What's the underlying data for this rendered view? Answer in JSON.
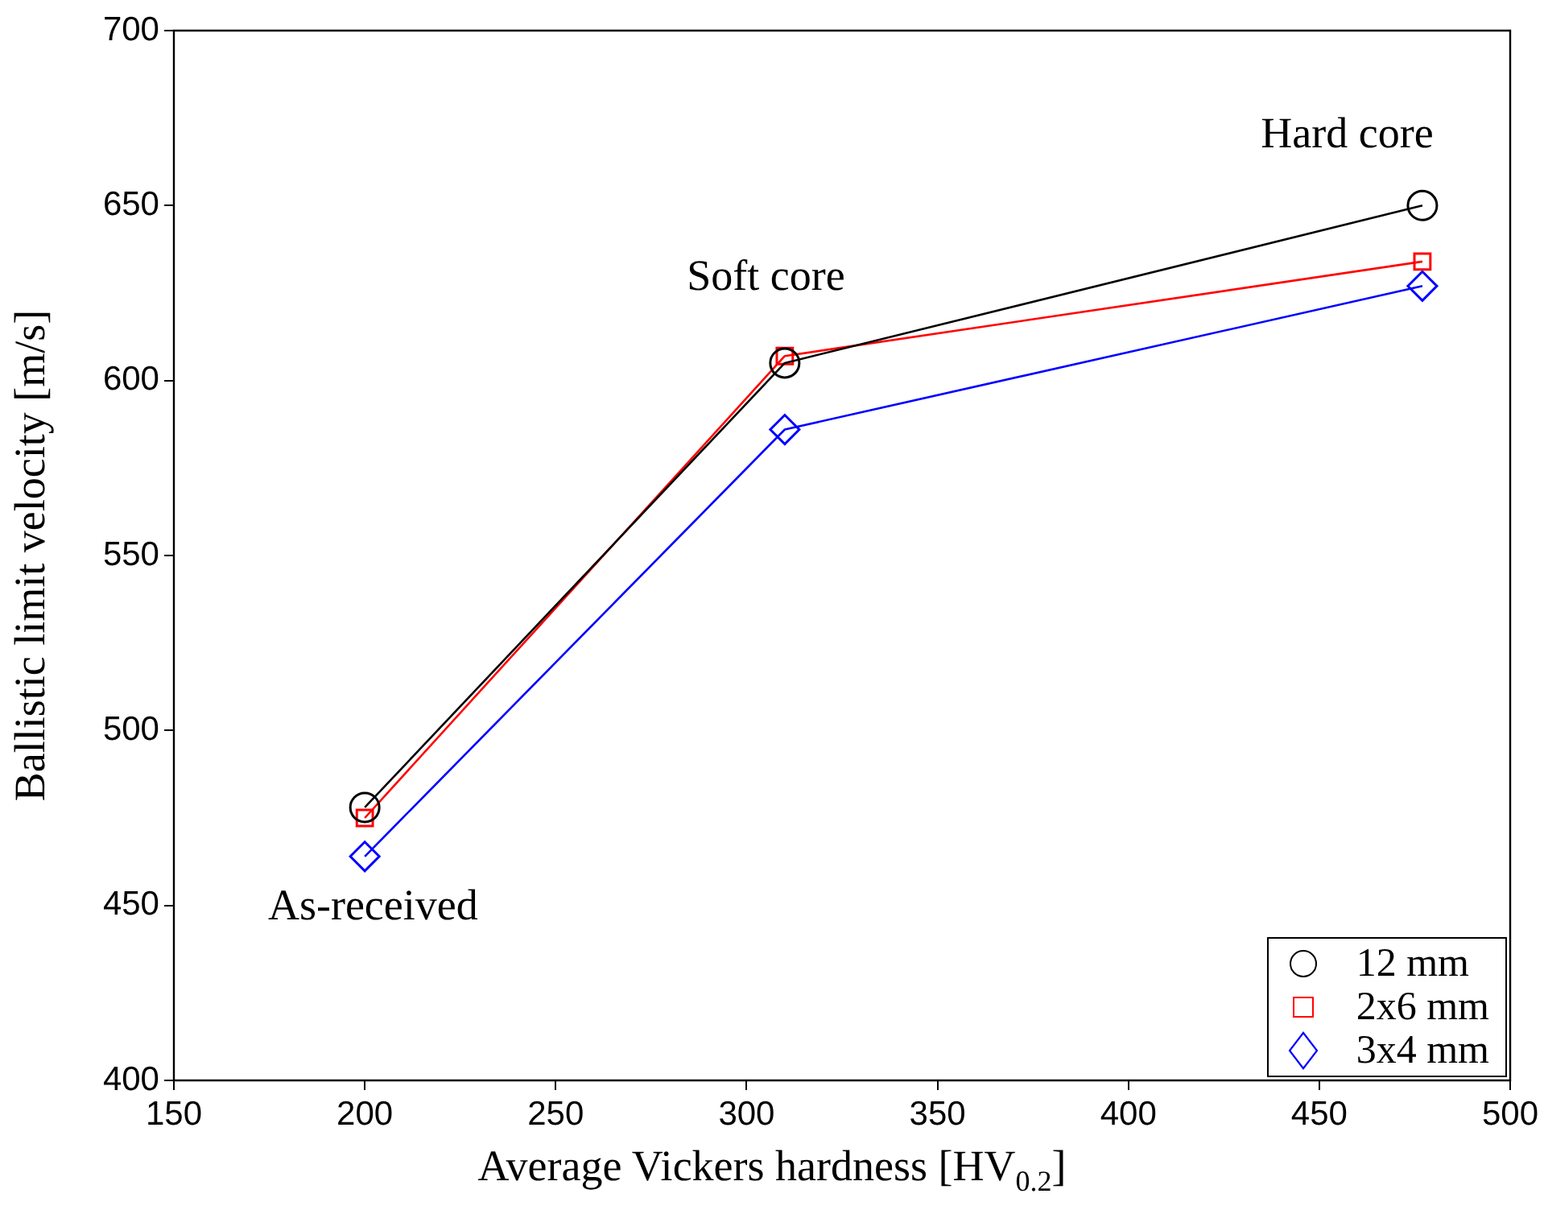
{
  "chart_data": {
    "type": "line",
    "xlabel": "Average Vickers hardness [HV$_{0.2}$]",
    "ylabel": "Ballistic limit velocity [m/s]",
    "x": [
      200,
      310,
      477
    ],
    "series": [
      {
        "name": "12 mm",
        "color": "#000000",
        "marker": "circle",
        "values": [
          478,
          605,
          650
        ]
      },
      {
        "name": "2x6 mm",
        "color": "#ff0000",
        "marker": "square",
        "values": [
          475,
          607,
          634
        ]
      },
      {
        "name": "3x4 mm",
        "color": "#0000ff",
        "marker": "diamond",
        "values": [
          464,
          586,
          627
        ]
      }
    ],
    "xlim": [
      150,
      500
    ],
    "xticks": [
      150,
      200,
      250,
      300,
      350,
      400,
      450,
      500
    ],
    "ylim": [
      400,
      700
    ],
    "yticks": [
      400,
      450,
      500,
      550,
      600,
      650,
      700
    ],
    "annotations": [
      "As-received",
      "Soft core",
      "Hard core"
    ],
    "grid": false,
    "legend": "bottom right",
    "line_style": "solid"
  }
}
